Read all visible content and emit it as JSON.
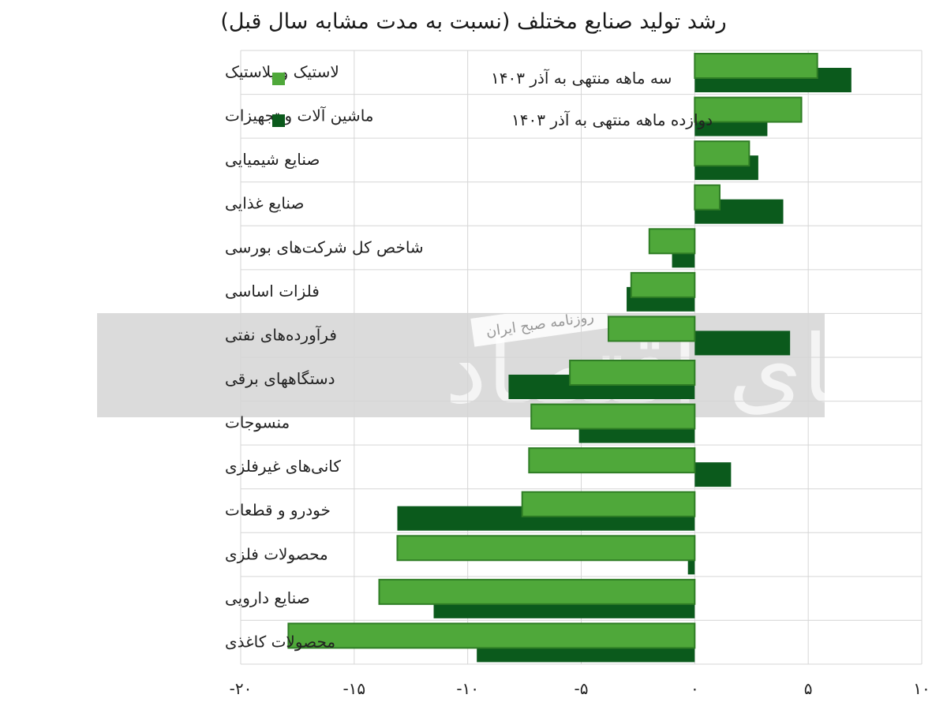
{
  "chart_data": {
    "type": "bar",
    "orientation": "horizontal",
    "title": "رشد تولید صنایع مختلف (نسبت به مدت مشابه سال قبل)",
    "categories": [
      "لاستیک و پلاستیک",
      "ماشین آلات و تجهیزات",
      "صنایع شیمیایی",
      "صنایع غذایی",
      "شاخص کل شرکت‌های بورسی",
      "فلزات اساسی",
      "فرآورده‌های نفتی",
      "دستگاههای برقی",
      "منسوجات",
      "کانی‌های غیرفلزی",
      "خودرو و قطعات",
      "محصولات فلزی",
      "صنایع دارویی",
      "محصولات کاغذی"
    ],
    "series": [
      {
        "name": "سه ماهه منتهی به آذر ۱۴۰۳",
        "color": "#4fa83a",
        "values": [
          5.4,
          4.7,
          2.4,
          1.1,
          -2.0,
          -2.8,
          -3.8,
          -5.5,
          -7.2,
          -7.3,
          -7.6,
          -13.1,
          -13.9,
          -17.9
        ]
      },
      {
        "name": "دوازده ماهه منتهی به آذر ۱۴۰۳",
        "color": "#0b5a1c",
        "values": [
          6.9,
          3.2,
          2.8,
          3.9,
          -1.0,
          -3.0,
          4.2,
          -8.2,
          -5.1,
          1.6,
          -13.1,
          -0.3,
          -11.5,
          -9.6
        ]
      }
    ],
    "xlim": [
      -20,
      10
    ],
    "xticks": [
      -20,
      -15,
      -10,
      -5,
      0,
      5,
      10
    ],
    "xtick_labels": [
      "-۲۰",
      "-۱۵",
      "-۱۰",
      "-۵",
      "۰",
      "۵",
      "۱۰"
    ],
    "grid": true,
    "legend_position": "top-left"
  },
  "watermark": {
    "brand": "دنیای اقتصاد",
    "stamp": "روزنامه صبح ایران"
  }
}
